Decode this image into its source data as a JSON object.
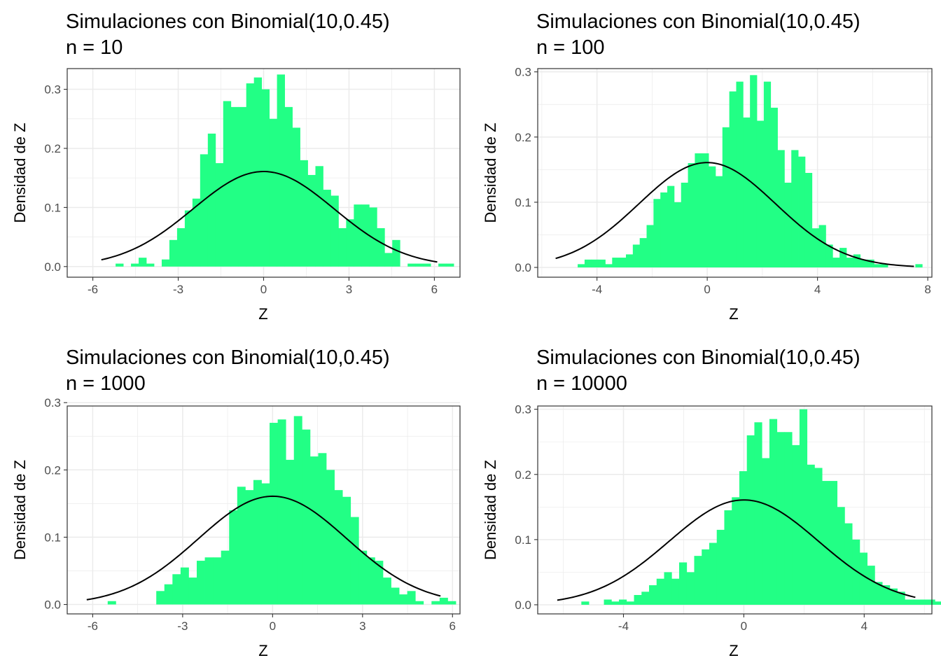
{
  "chart_data": [
    {
      "type": "histogram",
      "title": "Simulaciones con Binomial(10,0.45)",
      "subtitle": "n = 10",
      "xlabel": "Z",
      "ylabel": "Densidad de Z",
      "xlim": [
        -6.9,
        6.9
      ],
      "ylim": [
        -0.018,
        0.335
      ],
      "xticks": [
        -6,
        -3,
        0,
        3,
        6
      ],
      "xtick_labels": [
        "-6",
        "-3",
        "0",
        "3",
        "6"
      ],
      "yticks": [
        0,
        0.1,
        0.2,
        0.3
      ],
      "ytick_labels": [
        "0.0",
        "0.1",
        "0.2",
        "0.3"
      ],
      "grid": true,
      "bin_start": -5.2,
      "bin_width": 0.27,
      "values": [
        0.005,
        0,
        0.005,
        0.015,
        0.005,
        0,
        0.012,
        0.045,
        0.065,
        0.095,
        0.115,
        0.19,
        0.225,
        0.175,
        0.28,
        0.27,
        0.27,
        0.31,
        0.32,
        0.3,
        0.25,
        0.325,
        0.27,
        0.235,
        0.18,
        0.155,
        0.17,
        0.13,
        0.12,
        0.065,
        0.08,
        0.105,
        0.105,
        0.1,
        0.065,
        0.023,
        0.045,
        0,
        0.005,
        0.005,
        0.005,
        0,
        0.005,
        0.005
      ],
      "bar_color": "#22ff85",
      "curve": {
        "type": "normal_pdf",
        "mean": 0,
        "sd": 2.48,
        "x_range": [
          -5.7,
          6.1
        ],
        "color": "#000000"
      }
    },
    {
      "type": "histogram",
      "title": "Simulaciones con Binomial(10,0.45)",
      "subtitle": "n = 100",
      "xlabel": "Z",
      "ylabel": "Densidad de Z",
      "xlim": [
        -6.15,
        8.15
      ],
      "ylim": [
        -0.015,
        0.305
      ],
      "xticks": [
        -4,
        0,
        4,
        8
      ],
      "xtick_labels": [
        "-4",
        "0",
        "4",
        "8"
      ],
      "yticks": [
        0,
        0.1,
        0.2,
        0.3
      ],
      "ytick_labels": [
        "0.0",
        "0.1",
        "0.2",
        "0.3"
      ],
      "grid": true,
      "bin_start": -4.7,
      "bin_width": 0.25,
      "values": [
        0.005,
        0.012,
        0.012,
        0.012,
        0.005,
        0.015,
        0.015,
        0.02,
        0.035,
        0.045,
        0.065,
        0.105,
        0.115,
        0.125,
        0.1,
        0.13,
        0.16,
        0.175,
        0.175,
        0.155,
        0.14,
        0.215,
        0.27,
        0.285,
        0.23,
        0.295,
        0.225,
        0.285,
        0.245,
        0.18,
        0.13,
        0.18,
        0.17,
        0.145,
        0.06,
        0.065,
        0.035,
        0.015,
        0.03,
        0.015,
        0.02,
        0.012,
        0.012,
        0.005,
        0.005,
        0,
        0,
        0,
        0,
        0.005,
        0,
        0,
        0,
        0,
        0,
        0,
        0,
        0.005
      ],
      "bar_color": "#22ff85",
      "curve": {
        "type": "normal_pdf",
        "mean": 0,
        "sd": 2.48,
        "x_range": [
          -5.5,
          7.5
        ],
        "color": "#000000"
      }
    },
    {
      "type": "histogram",
      "title": "Simulaciones con Binomial(10,0.45)",
      "subtitle": "n = 1000",
      "xlabel": "Z",
      "ylabel": "Densidad de Z",
      "xlim": [
        -6.85,
        6.25
      ],
      "ylim": [
        -0.014,
        0.295
      ],
      "xticks": [
        -6,
        -3,
        0,
        3,
        6
      ],
      "xtick_labels": [
        "-6",
        "-3",
        "0",
        "3",
        "6"
      ],
      "yticks": [
        0,
        0.1,
        0.2,
        0.3
      ],
      "ytick_labels": [
        "0.0",
        "0.1",
        "0.2",
        "0.3"
      ],
      "grid": true,
      "bin_start": -5.5,
      "bin_width": 0.27,
      "values": [
        0.005,
        0,
        0,
        0,
        0,
        0,
        0.02,
        0.03,
        0.045,
        0.055,
        0.04,
        0.065,
        0.07,
        0.07,
        0.08,
        0.14,
        0.175,
        0.17,
        0.185,
        0.18,
        0.27,
        0.275,
        0.215,
        0.28,
        0.26,
        0.22,
        0.225,
        0.2,
        0.17,
        0.16,
        0.13,
        0.08,
        0.07,
        0.065,
        0.04,
        0.025,
        0.015,
        0.02,
        0.005,
        0,
        0.005,
        0.01,
        0.005
      ],
      "bar_color": "#22ff85",
      "curve": {
        "type": "normal_pdf",
        "mean": 0,
        "sd": 2.48,
        "x_range": [
          -6.2,
          5.6
        ],
        "color": "#000000"
      }
    },
    {
      "type": "histogram",
      "title": "Simulaciones con Binomial(10,0.45)",
      "subtitle": "n = 10000",
      "xlabel": "Z",
      "ylabel": "Densidad de Z",
      "xlim": [
        -6.85,
        6.25
      ],
      "ylim": [
        -0.014,
        0.305
      ],
      "xticks": [
        -4,
        0,
        4
      ],
      "xtick_labels": [
        "-4",
        "0",
        "4"
      ],
      "yticks": [
        0,
        0.1,
        0.2,
        0.3
      ],
      "ytick_labels": [
        "0.0",
        "0.1",
        "0.2",
        "0.3"
      ],
      "grid": true,
      "bin_start": -5.4,
      "bin_width": 0.25,
      "values": [
        0.005,
        0,
        0,
        0.008,
        0.005,
        0.008,
        0.005,
        0.015,
        0.02,
        0.03,
        0.04,
        0.05,
        0.04,
        0.065,
        0.05,
        0.075,
        0.085,
        0.095,
        0.115,
        0.145,
        0.165,
        0.205,
        0.26,
        0.28,
        0.225,
        0.285,
        0.265,
        0.265,
        0.245,
        0.3,
        0.215,
        0.21,
        0.19,
        0.19,
        0.15,
        0.125,
        0.1,
        0.08,
        0.06,
        0.035,
        0.03,
        0.025,
        0.02,
        0.008,
        0.008,
        0.008,
        0.008,
        0.005,
        0.012,
        0.005
      ],
      "bar_color": "#22ff85",
      "curve": {
        "type": "normal_pdf",
        "mean": 0,
        "sd": 2.48,
        "x_range": [
          -6.2,
          5.7
        ],
        "color": "#000000"
      }
    }
  ]
}
